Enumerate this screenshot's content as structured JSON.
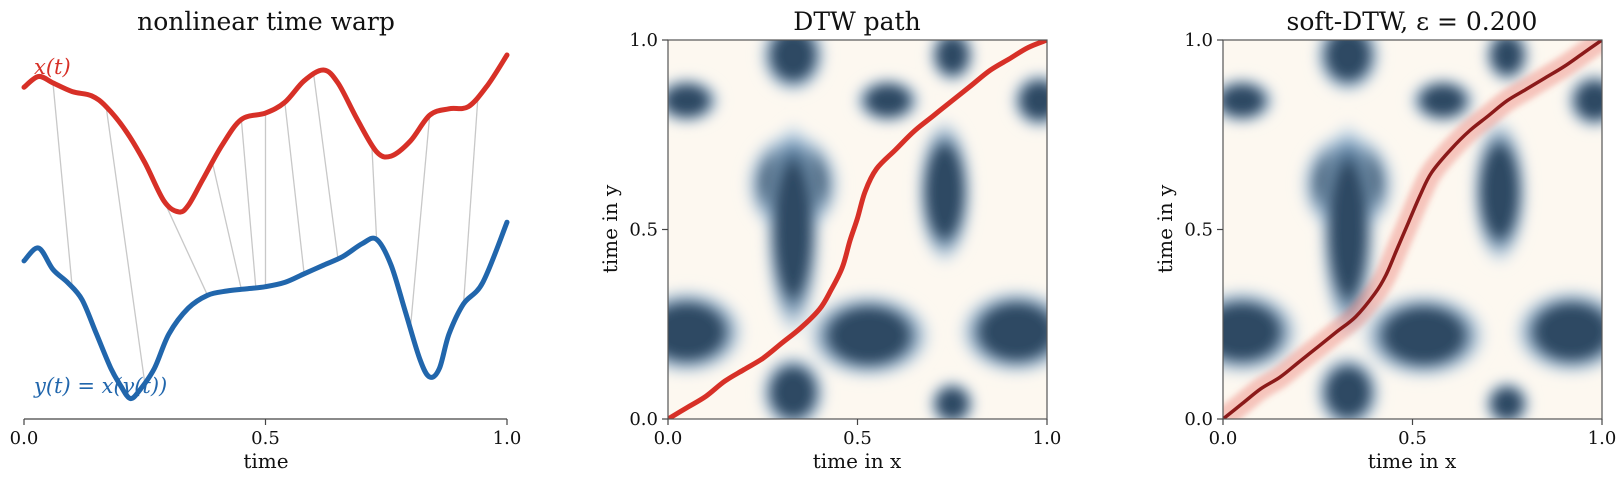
{
  "chart_data": [
    {
      "type": "line",
      "title": "nonlinear time warp",
      "xlabel": "time",
      "xlim": [
        0,
        1
      ],
      "xticks": [
        "0.0",
        "0.5",
        "1.0"
      ],
      "grid": false,
      "colors": {
        "x": "#d73027",
        "y": "#2166ac",
        "link": "#c8c8c8"
      },
      "series": [
        {
          "name": "x(t)",
          "color": "#d73027",
          "x": [
            0,
            0.03,
            0.06,
            0.1,
            0.14,
            0.17,
            0.21,
            0.25,
            0.29,
            0.32,
            0.34,
            0.37,
            0.41,
            0.45,
            0.5,
            0.54,
            0.58,
            0.62,
            0.65,
            0.69,
            0.73,
            0.76,
            0.8,
            0.84,
            0.88,
            0.92,
            0.96,
            1.0
          ],
          "y": [
            0.85,
            0.9,
            0.87,
            0.83,
            0.81,
            0.76,
            0.65,
            0.5,
            0.32,
            0.27,
            0.3,
            0.42,
            0.58,
            0.7,
            0.73,
            0.78,
            0.88,
            0.93,
            0.87,
            0.7,
            0.55,
            0.53,
            0.6,
            0.72,
            0.75,
            0.76,
            0.86,
            1.0
          ]
        },
        {
          "name": "y(t) = x(γ(t))",
          "color": "#2166ac",
          "x": [
            0,
            0.03,
            0.06,
            0.09,
            0.12,
            0.15,
            0.18,
            0.2,
            0.22,
            0.24,
            0.27,
            0.3,
            0.34,
            0.38,
            0.42,
            0.46,
            0.5,
            0.54,
            0.58,
            0.62,
            0.66,
            0.7,
            0.73,
            0.76,
            0.79,
            0.82,
            0.84,
            0.86,
            0.88,
            0.91,
            0.95,
            1.0
          ],
          "y": [
            0.37,
            0.4,
            0.35,
            0.32,
            0.28,
            0.2,
            0.12,
            0.08,
            0.05,
            0.07,
            0.12,
            0.2,
            0.26,
            0.29,
            0.3,
            0.305,
            0.31,
            0.32,
            0.34,
            0.36,
            0.38,
            0.41,
            0.42,
            0.36,
            0.25,
            0.14,
            0.1,
            0.12,
            0.2,
            0.27,
            0.32,
            0.46
          ]
        }
      ],
      "links": [
        [
          0.06,
          0.1
        ],
        [
          0.17,
          0.25
        ],
        [
          0.29,
          0.38
        ],
        [
          0.39,
          0.45
        ],
        [
          0.45,
          0.48
        ],
        [
          0.5,
          0.5
        ],
        [
          0.54,
          0.58
        ],
        [
          0.6,
          0.65
        ],
        [
          0.72,
          0.73
        ],
        [
          0.84,
          0.8
        ],
        [
          0.94,
          0.91
        ]
      ]
    },
    {
      "type": "heatmap",
      "title": "DTW path",
      "xlabel": "time in x",
      "ylabel": "time in y",
      "xlim": [
        0,
        1
      ],
      "ylim": [
        0,
        1
      ],
      "xticks": [
        "0.0",
        "0.5",
        "1.0"
      ],
      "yticks": [
        "0.0",
        "0.5",
        "1.0"
      ],
      "colormap": [
        "#fdf8f0",
        "#dce9f4",
        "#a8c4dc",
        "#2f4a63"
      ],
      "path_color": "#d73027",
      "path": {
        "x": [
          0,
          0.05,
          0.1,
          0.15,
          0.2,
          0.25,
          0.3,
          0.35,
          0.4,
          0.43,
          0.46,
          0.48,
          0.5,
          0.52,
          0.55,
          0.6,
          0.65,
          0.7,
          0.75,
          0.8,
          0.85,
          0.9,
          0.95,
          1.0
        ],
        "y": [
          0,
          0.03,
          0.06,
          0.1,
          0.13,
          0.16,
          0.2,
          0.24,
          0.29,
          0.34,
          0.4,
          0.47,
          0.53,
          0.6,
          0.66,
          0.71,
          0.76,
          0.8,
          0.84,
          0.88,
          0.92,
          0.95,
          0.98,
          1.0
        ]
      }
    },
    {
      "type": "heatmap",
      "title": "soft-DTW, ε = 0.200",
      "xlabel": "time in x",
      "ylabel": "time in y",
      "xlim": [
        0,
        1
      ],
      "ylim": [
        0,
        1
      ],
      "xticks": [
        "0.0",
        "0.5",
        "1.0"
      ],
      "yticks": [
        "0.0",
        "0.5",
        "1.0"
      ],
      "colormap": [
        "#fdf8f0",
        "#dce9f4",
        "#a8c4dc",
        "#2f4a63"
      ],
      "path_color": "#8b1a1a",
      "halo_color": "#e8655a",
      "path": {
        "x": [
          0,
          0.05,
          0.1,
          0.15,
          0.2,
          0.25,
          0.3,
          0.35,
          0.4,
          0.43,
          0.46,
          0.49,
          0.52,
          0.55,
          0.6,
          0.65,
          0.7,
          0.75,
          0.8,
          0.85,
          0.9,
          0.95,
          1.0
        ],
        "y": [
          0,
          0.04,
          0.08,
          0.11,
          0.15,
          0.19,
          0.23,
          0.27,
          0.33,
          0.38,
          0.45,
          0.52,
          0.59,
          0.65,
          0.71,
          0.76,
          0.8,
          0.84,
          0.87,
          0.9,
          0.93,
          0.965,
          1.0
        ]
      }
    }
  ]
}
